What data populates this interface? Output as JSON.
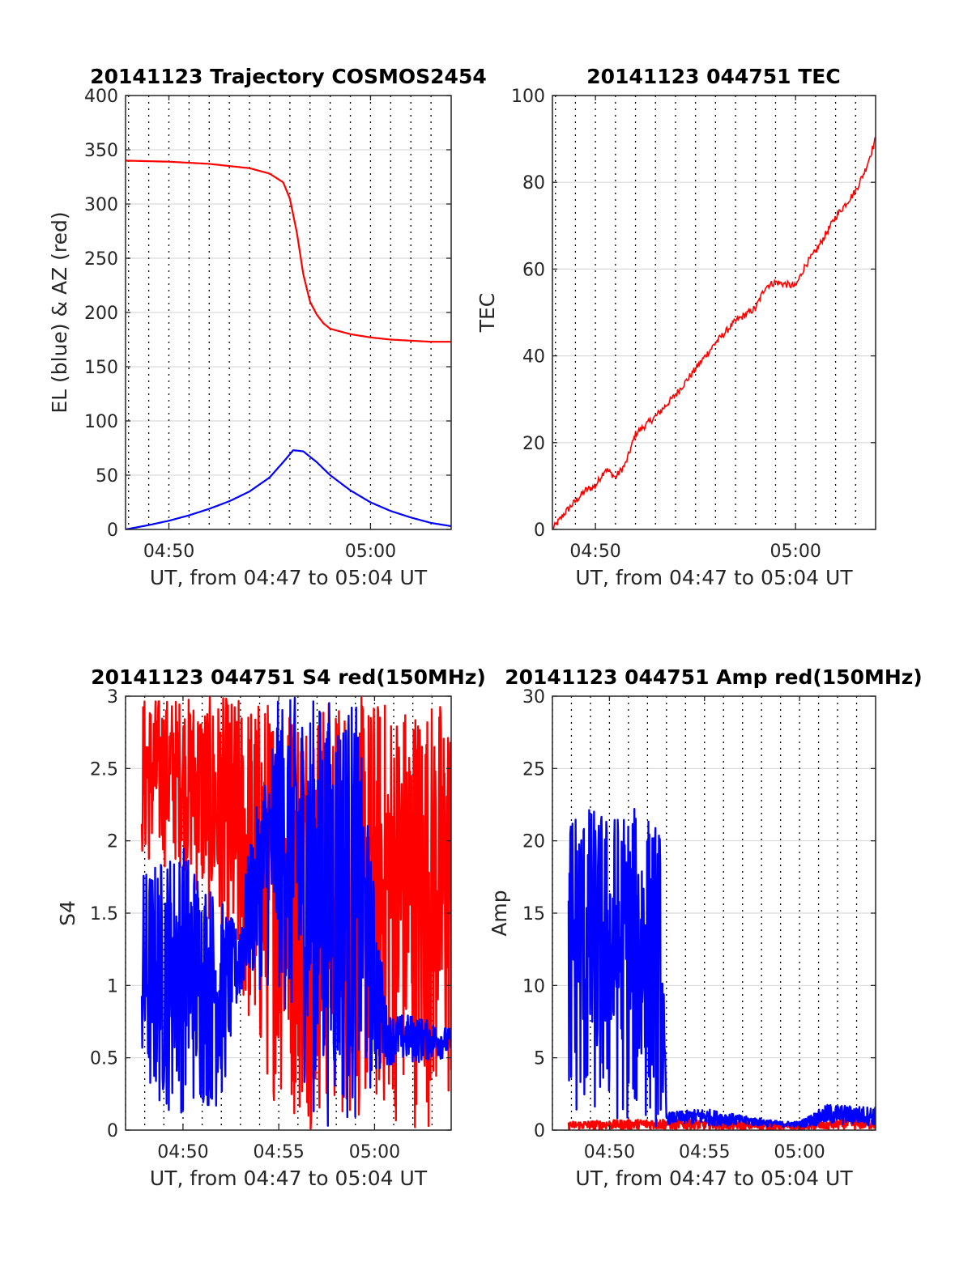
{
  "chart_data": [
    {
      "type": "line",
      "title": "20141123 Trajectory COSMOS2454",
      "xlabel": "UT, from 04:47 to 05:04 UT",
      "ylabel": "EL (blue) & AZ (red)",
      "xlim": [
        "04:47:51",
        "05:04:00"
      ],
      "ylim": [
        0,
        400
      ],
      "xticks": [
        "04:50",
        "05:00"
      ],
      "yticks": [
        0,
        50,
        100,
        150,
        200,
        250,
        300,
        350,
        400
      ],
      "grid": true,
      "series": [
        {
          "color": "#ff0000",
          "x": [
            "04:47:51",
            "04:50:00",
            "04:52:00",
            "04:54:00",
            "04:55:00",
            "04:55:40",
            "04:56:00",
            "04:56:20",
            "04:56:40",
            "04:57:00",
            "04:57:20",
            "04:57:40",
            "04:58:00",
            "04:59:00",
            "05:00:00",
            "05:01:00",
            "05:02:00",
            "05:03:00",
            "05:04:00"
          ],
          "y": [
            340,
            339,
            337,
            333,
            328,
            320,
            305,
            275,
            235,
            210,
            198,
            190,
            185,
            180,
            177,
            175,
            174,
            173,
            173
          ]
        },
        {
          "color": "#0000ff",
          "x": [
            "04:47:51",
            "04:49:00",
            "04:50:00",
            "04:51:00",
            "04:52:00",
            "04:53:00",
            "04:54:00",
            "04:55:00",
            "04:55:40",
            "04:56:10",
            "04:56:40",
            "04:57:20",
            "04:58:00",
            "04:59:00",
            "05:00:00",
            "05:01:00",
            "05:02:00",
            "05:03:00",
            "05:04:00"
          ],
          "y": [
            0,
            4,
            8,
            13,
            19,
            26,
            35,
            48,
            62,
            73,
            72,
            62,
            50,
            36,
            25,
            17,
            11,
            6,
            3
          ]
        }
      ]
    },
    {
      "type": "line",
      "title": "20141123 044751 TEC",
      "xlabel": "UT, from 04:47 to 05:04 UT",
      "ylabel": "TEC",
      "xlim": [
        "04:47:51",
        "05:04:00"
      ],
      "ylim": [
        0,
        100
      ],
      "xticks": [
        "04:50",
        "05:00"
      ],
      "yticks": [
        0,
        20,
        40,
        60,
        80,
        100
      ],
      "grid": true,
      "series": [
        {
          "color": "#ff0000",
          "x": [
            "04:47:51",
            "04:48:30",
            "04:49:30",
            "04:50:00",
            "04:50:30",
            "04:51:00",
            "04:51:30",
            "04:52:00",
            "04:52:30",
            "04:53:00",
            "04:54:00",
            "04:55:00",
            "04:56:00",
            "04:57:00",
            "04:58:00",
            "04:58:30",
            "04:59:00",
            "05:00:00",
            "05:00:30",
            "05:01:00",
            "05:01:30",
            "05:02:00",
            "05:02:30",
            "05:03:00",
            "05:03:30",
            "05:04:00"
          ],
          "y": [
            0,
            4,
            9,
            10,
            14,
            12,
            15,
            22,
            24,
            26,
            31,
            37,
            43,
            48,
            51,
            56,
            57,
            56,
            61,
            64,
            68,
            72,
            75,
            78,
            83,
            90
          ]
        }
      ]
    },
    {
      "type": "line",
      "title": "20141123 044751 S4 red(150MHz)",
      "xlabel": "UT, from 04:47 to 05:04 UT",
      "ylabel": "S4",
      "xlim": [
        "04:47:00",
        "05:04:00"
      ],
      "ylim": [
        0,
        3
      ],
      "xticks": [
        "04:50",
        "04:55",
        "05:00"
      ],
      "yticks": [
        0,
        0.5,
        1,
        1.5,
        2,
        2.5,
        3
      ],
      "grid": true,
      "series": [
        {
          "color": "#ff0000",
          "x": [
            "04:47:51",
            "04:50:00",
            "04:52:00",
            "04:54:00",
            "04:56:00",
            "04:58:00",
            "05:00:00",
            "05:02:00",
            "05:04:00"
          ],
          "y_range": [
            [
              1.8,
              3.0
            ],
            [
              1.8,
              3.0
            ],
            [
              1.2,
              3.0
            ],
            [
              0.3,
              3.0
            ],
            [
              0.0,
              3.0
            ],
            [
              0.0,
              3.0
            ],
            [
              0.0,
              3.0
            ],
            [
              0.0,
              3.0
            ],
            [
              0.0,
              3.0
            ]
          ]
        },
        {
          "color": "#0000ff",
          "x": [
            "04:47:51",
            "04:50:00",
            "04:52:00",
            "04:52:50",
            "04:53:30",
            "04:55:00",
            "04:57:00",
            "04:59:00",
            "05:00:40",
            "05:02:00",
            "05:04:00"
          ],
          "y_range": [
            [
              0.1,
              1.8
            ],
            [
              0.1,
              2.0
            ],
            [
              0.12,
              1.6
            ],
            [
              0.8,
              1.4
            ],
            [
              1.0,
              2.0
            ],
            [
              0.9,
              3.0
            ],
            [
              0.0,
              3.0
            ],
            [
              0.0,
              3.0
            ],
            [
              0.45,
              0.8
            ],
            [
              0.45,
              0.8
            ],
            [
              0.5,
              0.7
            ]
          ]
        }
      ]
    },
    {
      "type": "line",
      "title": "20141123 044751 Amp red(150MHz)",
      "xlabel": "UT, from 04:47 to 05:04 UT",
      "ylabel": "Amp",
      "xlim": [
        "04:47:00",
        "05:04:00"
      ],
      "ylim": [
        0,
        30
      ],
      "xticks": [
        "04:50",
        "04:55",
        "05:00"
      ],
      "yticks": [
        0,
        5,
        10,
        15,
        20,
        25,
        30
      ],
      "grid": true,
      "series": [
        {
          "color": "#ff0000",
          "x": [
            "04:47:51",
            "04:52:50",
            "04:55:00",
            "05:00:00",
            "05:04:00"
          ],
          "y_range": [
            [
              0,
              0.6
            ],
            [
              0,
              0.8
            ],
            [
              0,
              0.7
            ],
            [
              0,
              0.4
            ],
            [
              0,
              1.0
            ]
          ]
        },
        {
          "color": "#0000ff",
          "x": [
            "04:47:51",
            "04:49:00",
            "04:50:00",
            "04:51:00",
            "04:52:00",
            "04:52:40",
            "04:53:00",
            "04:55:00",
            "04:57:00",
            "04:59:00",
            "05:00:00",
            "05:01:30",
            "05:02:30",
            "05:04:00"
          ],
          "y_range": [
            [
              0,
              23
            ],
            [
              0,
              22.5
            ],
            [
              0,
              22
            ],
            [
              0,
              22.5
            ],
            [
              0,
              22
            ],
            [
              0,
              21
            ],
            [
              0.4,
              1.2
            ],
            [
              0.3,
              1.5
            ],
            [
              0.3,
              1.0
            ],
            [
              0.2,
              0.6
            ],
            [
              0.2,
              0.6
            ],
            [
              0.3,
              1.8
            ],
            [
              0.3,
              1.7
            ],
            [
              0.3,
              1.6
            ]
          ]
        }
      ]
    }
  ]
}
